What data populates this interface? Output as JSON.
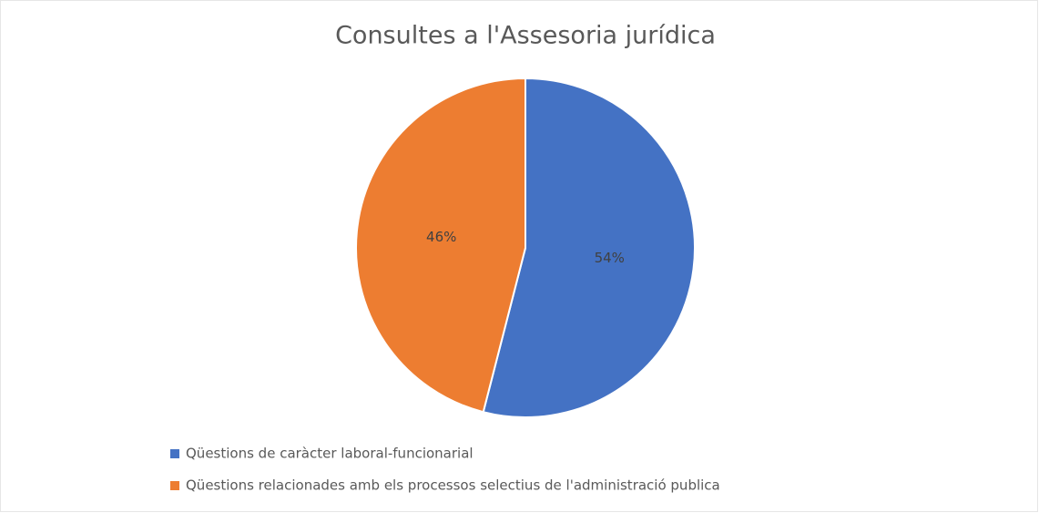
{
  "chart_data": {
    "type": "pie",
    "title": "Consultes a l'Assesoria jurídica",
    "categories": [
      "Qüestions de caràcter laboral-funcionarial",
      "Qüestions relacionades amb els processos selectius de l'administració publica"
    ],
    "values": [
      54,
      46
    ],
    "value_labels": [
      "54%",
      "46%"
    ],
    "colors": [
      "#4472c4",
      "#ed7d31"
    ],
    "legend": "bottom"
  }
}
